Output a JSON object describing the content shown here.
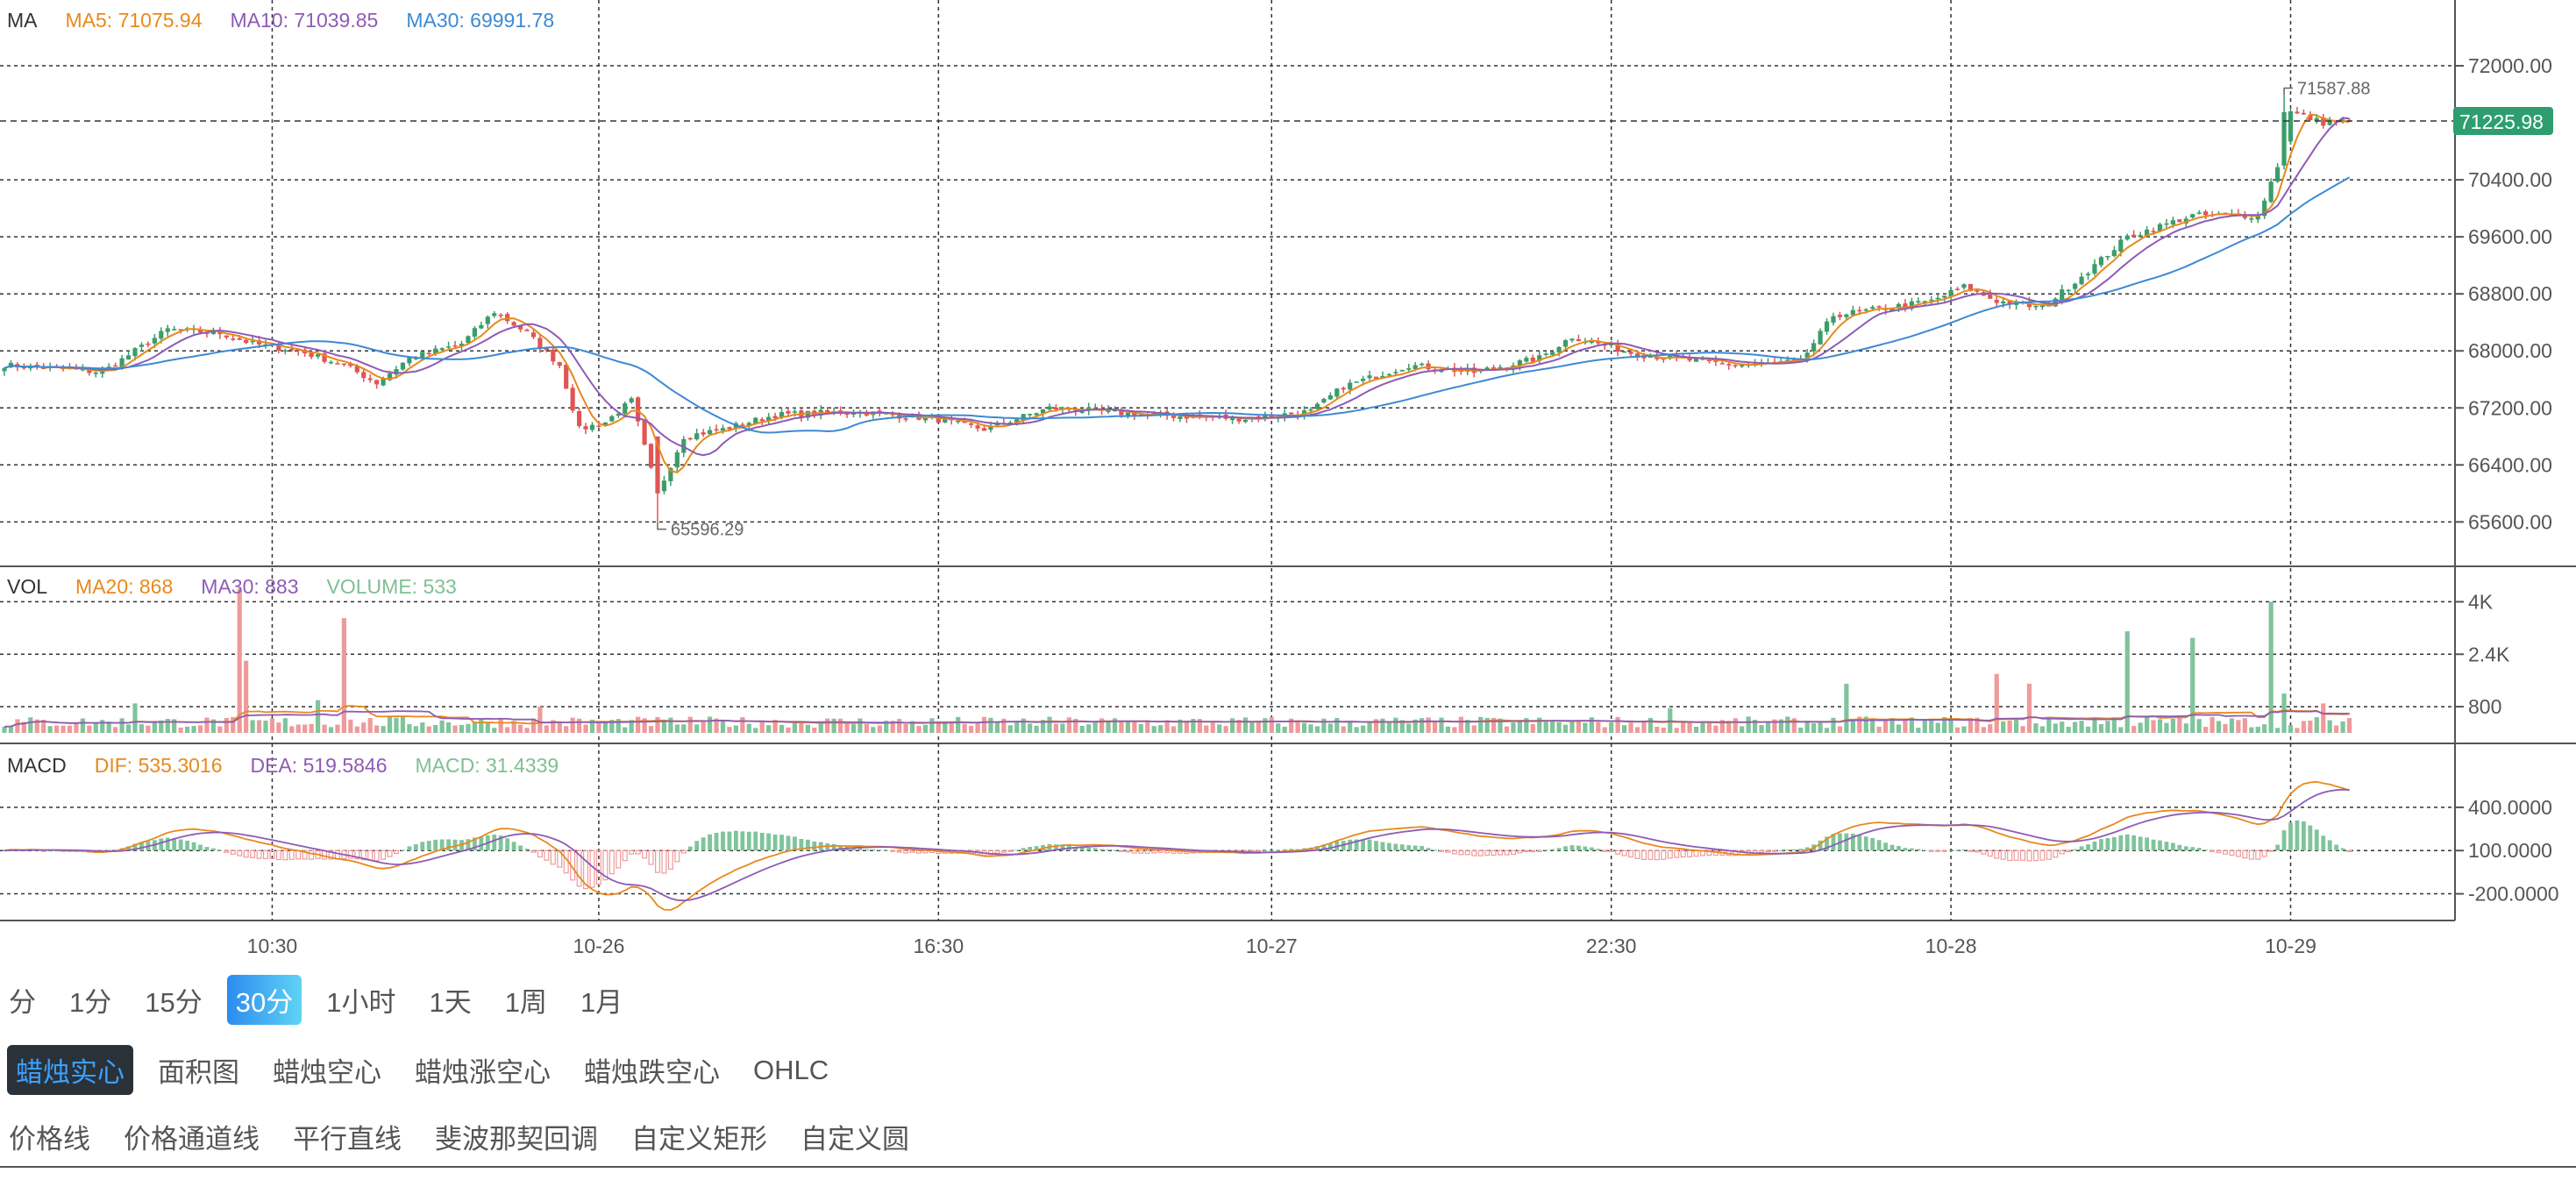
{
  "legends": {
    "ma": {
      "name": "MA",
      "items": [
        {
          "text": "MA5: 71075.94",
          "color": "#e8891c"
        },
        {
          "text": "MA10: 71039.85",
          "color": "#8e5bb5"
        },
        {
          "text": "MA30: 69991.78",
          "color": "#3d8ad3"
        }
      ]
    },
    "vol": {
      "name": "VOL",
      "items": [
        {
          "text": "MA20: 868",
          "color": "#e8891c"
        },
        {
          "text": "MA30: 883",
          "color": "#8e5bb5"
        },
        {
          "text": "VOLUME: 533",
          "color": "#7fbf94"
        }
      ]
    },
    "macd": {
      "name": "MACD",
      "items": [
        {
          "text": "DIF: 535.3016",
          "color": "#e8891c"
        },
        {
          "text": "DEA: 519.5846",
          "color": "#8e5bb5"
        },
        {
          "text": "MACD: 31.4339",
          "color": "#7fbf94"
        }
      ]
    }
  },
  "chart_data": {
    "type": "candlestick",
    "colors": {
      "up": "#3a9d6a",
      "down": "#e05555",
      "ma5": "#e8891c",
      "ma10": "#8e5bb5",
      "ma30": "#3d8ad3",
      "price_tag": "#2e9e70"
    },
    "x_ticks": [
      "10:30",
      "10-26",
      "16:30",
      "10-27",
      "22:30",
      "10-28",
      "10-29"
    ],
    "price_axis": {
      "ticks": [
        "72000.00",
        "70400.00",
        "69600.00",
        "68800.00",
        "68000.00",
        "67200.00",
        "66400.00",
        "65600.00"
      ],
      "ylim": [
        65100,
        72800
      ]
    },
    "last_price": "71225.98",
    "max_label": "71587.88",
    "min_label": "65596.29",
    "volume_axis": {
      "ticks": [
        "4K",
        "2.4K",
        "800"
      ]
    },
    "macd_axis": {
      "ticks": [
        "400.0000",
        "100.0000",
        "-200.0000"
      ]
    },
    "close_anchors": [
      [
        0,
        67800
      ],
      [
        15,
        67700
      ],
      [
        25,
        68300
      ],
      [
        33,
        68250
      ],
      [
        38,
        68100
      ],
      [
        45,
        68000
      ],
      [
        52,
        67800
      ],
      [
        57,
        67550
      ],
      [
        62,
        67900
      ],
      [
        70,
        68100
      ],
      [
        75,
        68550
      ],
      [
        80,
        68250
      ],
      [
        85,
        67800
      ],
      [
        88,
        66900
      ],
      [
        92,
        67000
      ],
      [
        96,
        67300
      ],
      [
        100,
        66000
      ],
      [
        104,
        66800
      ],
      [
        110,
        66900
      ],
      [
        118,
        67100
      ],
      [
        130,
        67150
      ],
      [
        142,
        67050
      ],
      [
        150,
        66900
      ],
      [
        160,
        67200
      ],
      [
        175,
        67100
      ],
      [
        190,
        67050
      ],
      [
        200,
        67150
      ],
      [
        205,
        67500
      ],
      [
        215,
        67800
      ],
      [
        225,
        67700
      ],
      [
        235,
        67900
      ],
      [
        240,
        68200
      ],
      [
        250,
        67950
      ],
      [
        265,
        67800
      ],
      [
        275,
        67850
      ],
      [
        280,
        68500
      ],
      [
        288,
        68600
      ],
      [
        295,
        68700
      ],
      [
        300,
        68900
      ],
      [
        305,
        68700
      ],
      [
        312,
        68600
      ],
      [
        320,
        69200
      ],
      [
        325,
        69600
      ],
      [
        335,
        69900
      ],
      [
        345,
        69900
      ],
      [
        348,
        70600
      ],
      [
        350,
        71350
      ],
      [
        355,
        71200
      ],
      [
        359,
        71226
      ]
    ],
    "volume_spikes": [
      [
        20,
        900
      ],
      [
        36,
        4400
      ],
      [
        37,
        2200
      ],
      [
        48,
        1000
      ],
      [
        52,
        3500
      ],
      [
        82,
        800
      ],
      [
        255,
        750
      ],
      [
        282,
        1500
      ],
      [
        305,
        1800
      ],
      [
        310,
        1500
      ],
      [
        325,
        3100
      ],
      [
        335,
        2900
      ],
      [
        347,
        4000
      ],
      [
        349,
        1200
      ],
      [
        355,
        900
      ]
    ]
  },
  "toolbar": {
    "intervals": [
      "分",
      "1分",
      "15分",
      "30分",
      "1小时",
      "1天",
      "1周",
      "1月"
    ],
    "interval_active": 3,
    "chart_types": [
      "蜡烛实心",
      "面积图",
      "蜡烛空心",
      "蜡烛涨空心",
      "蜡烛跌空心",
      "OHLC"
    ],
    "chart_type_active": 0,
    "drawing_tools": [
      "价格线",
      "价格通道线",
      "平行直线",
      "斐波那契回调",
      "自定义矩形",
      "自定义圆"
    ]
  }
}
